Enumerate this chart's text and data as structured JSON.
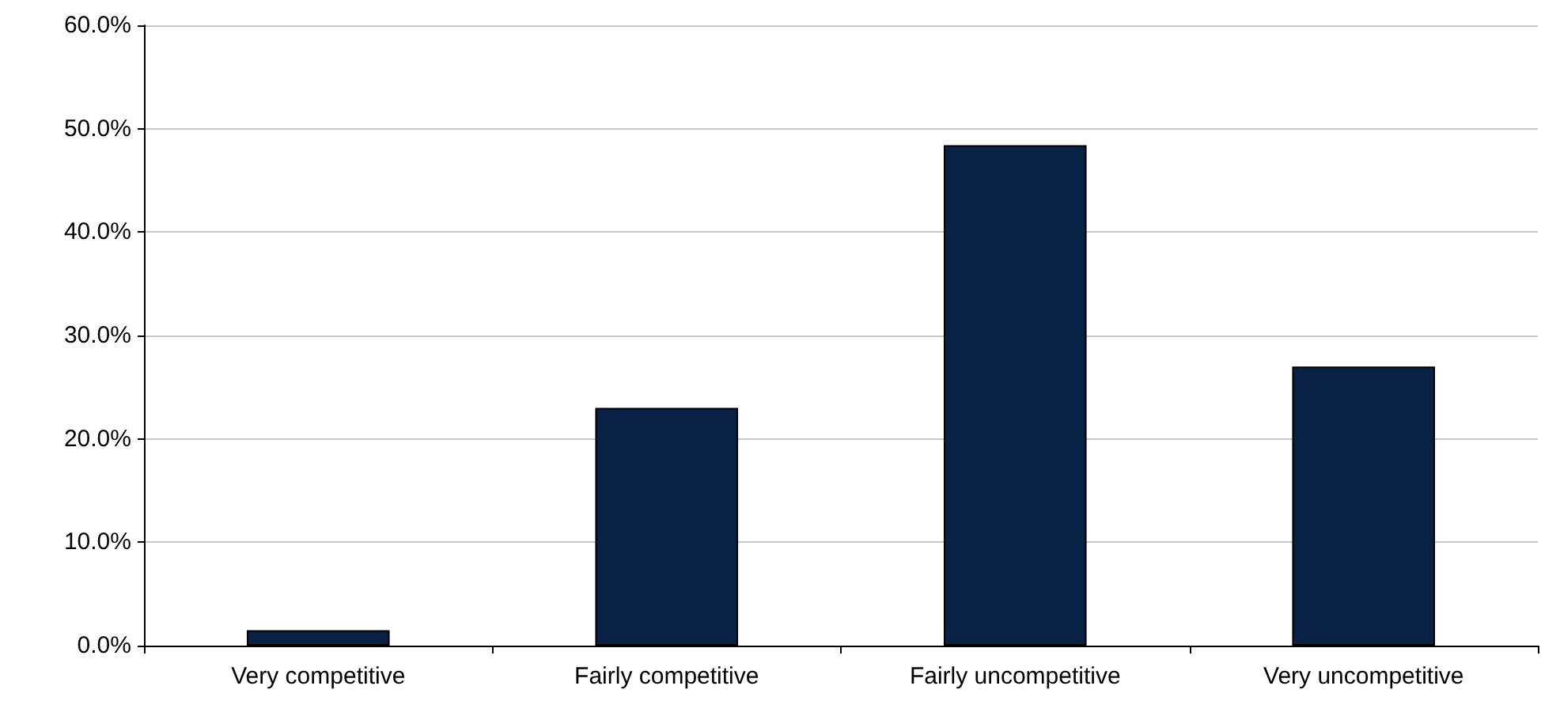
{
  "chart_data": {
    "type": "bar",
    "categories": [
      "Very competitive",
      "Fairly competitive",
      "Fairly uncompetitive",
      "Very uncompetitive"
    ],
    "values": [
      1.5,
      23.0,
      48.4,
      27.0
    ],
    "color": "#0a2146",
    "ylim": [
      0,
      60
    ],
    "yticks": [
      {
        "value": 0,
        "label": "0.0%"
      },
      {
        "value": 10,
        "label": "10.0%"
      },
      {
        "value": 20,
        "label": "20.0%"
      },
      {
        "value": 30,
        "label": "30.0%"
      },
      {
        "value": 40,
        "label": "40.0%"
      },
      {
        "value": 50,
        "label": "50.0%"
      },
      {
        "value": 60,
        "label": "60.0%"
      }
    ],
    "grid": "y"
  }
}
